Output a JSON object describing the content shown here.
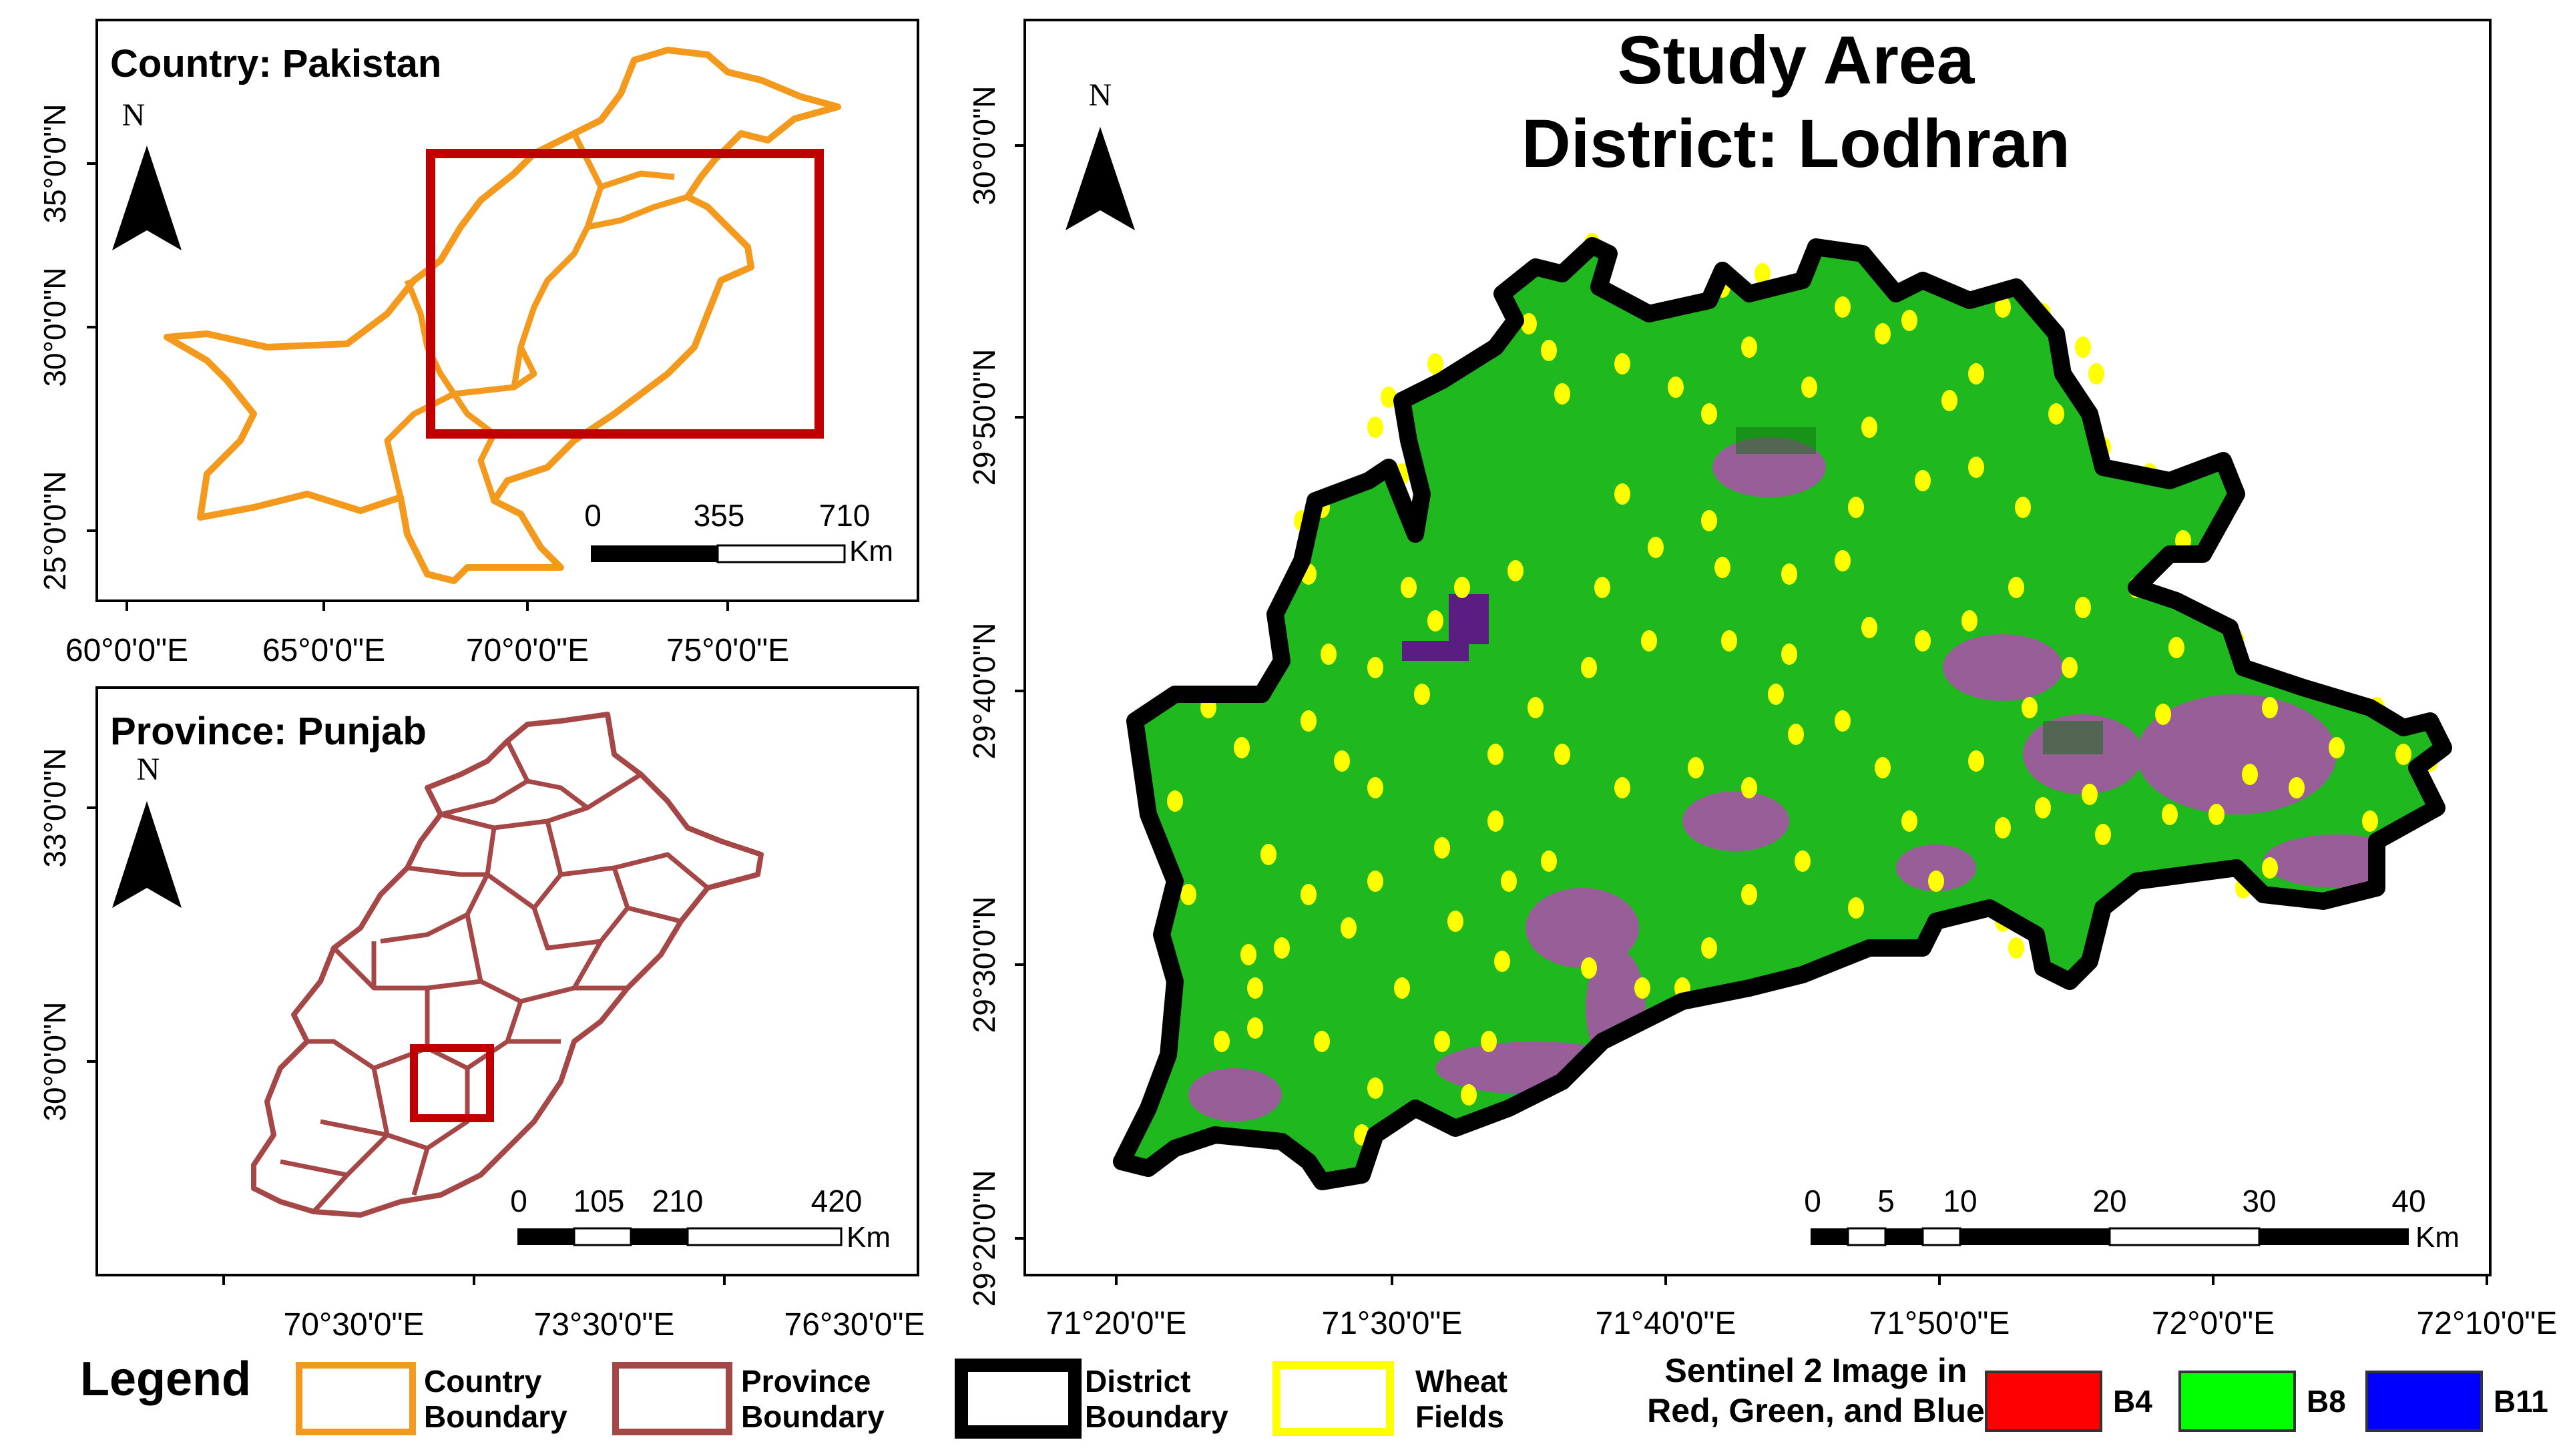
{
  "colors": {
    "country": "#f39a1e",
    "province": "#a64747",
    "district": "#000000",
    "wheat": "#ffff00",
    "inset": "#c00000",
    "b4": "#ff0000",
    "b8": "#00ff00",
    "b11": "#0000ff",
    "sentinel_green": "#1fb81f",
    "urban": "#c040c0"
  },
  "country_panel": {
    "title": "Country: Pakistan",
    "north": "N",
    "lat_labels": [
      "35°0'0\"N",
      "30°0'0\"N",
      "25°0'0\"N"
    ],
    "lon_labels": [
      "60°0'0\"E",
      "65°0'0\"E",
      "70°0'0\"E",
      "75°0'0\"E"
    ],
    "scale": {
      "ticks": [
        "0",
        "355",
        "710"
      ],
      "unit": "Km"
    }
  },
  "province_panel": {
    "title": "Province: Punjab",
    "north": "N",
    "lat_labels": [
      "33°0'0\"N",
      "30°0'0\"N"
    ],
    "lon_labels": [
      "70°30'0\"E",
      "73°30'0\"E",
      "76°30'0\"E"
    ],
    "scale": {
      "ticks": [
        "0",
        "105",
        "210",
        "420"
      ],
      "unit": "Km"
    }
  },
  "district_panel": {
    "title_line1": "Study Area",
    "title_line2": "District: Lodhran",
    "north": "N",
    "lat_labels": [
      "30°0'0\"N",
      "29°50'0\"N",
      "29°40'0\"N",
      "29°30'0\"N",
      "29°20'0\"N"
    ],
    "lon_labels": [
      "71°20'0\"E",
      "71°30'0\"E",
      "71°40'0\"E",
      "71°50'0\"E",
      "72°0'0\"E",
      "72°10'0\"E"
    ],
    "scale": {
      "ticks": [
        "0",
        "5",
        "10",
        "20",
        "30",
        "40"
      ],
      "unit": "Km"
    }
  },
  "legend": {
    "title": "Legend",
    "country_1": "Country",
    "country_2": "Boundary",
    "province_1": "Province",
    "province_2": "Boundary",
    "district_1": "District",
    "district_2": "Boundary",
    "wheat_1": "Wheat",
    "wheat_2": "Fields",
    "sentinel_1": "Sentinel 2 Image in",
    "sentinel_2": "Red, Green, and Blue",
    "b4": "B4",
    "b8": "B8",
    "b11": "B11"
  }
}
